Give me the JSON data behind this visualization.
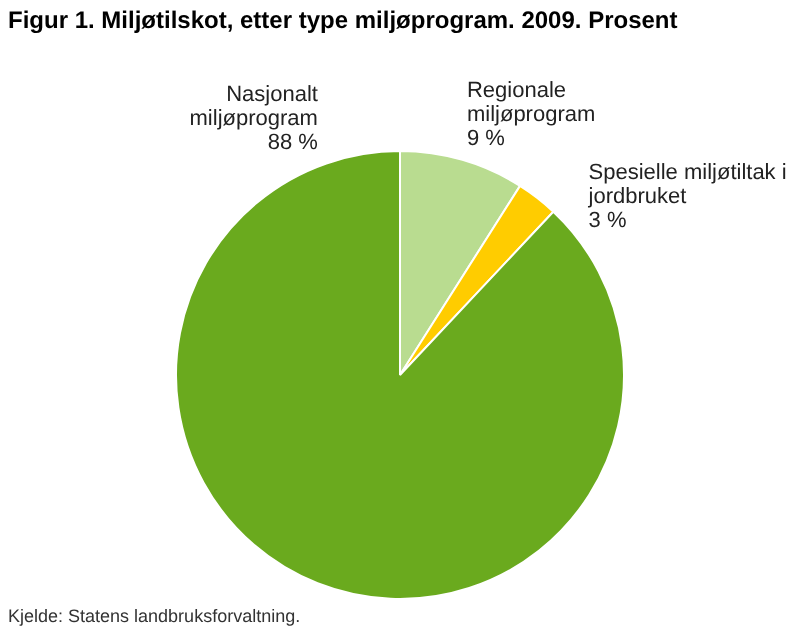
{
  "chart_data": {
    "type": "pie",
    "title": "Figur 1. Miljøtilskot, etter type miljøprogram. 2009. Prosent",
    "categories": [
      "Regionale miljøprogram",
      "Spesielle miljøtiltak i jordbruket",
      "Nasjonalt miljøprogram"
    ],
    "values": [
      9,
      3,
      88
    ],
    "colors": [
      "#b9dc90",
      "#ffcc00",
      "#6aaa1e"
    ],
    "value_labels": [
      "9 %",
      "3 %",
      "88 %"
    ],
    "annotations": [
      "Kjelde: Statens landbruksforvaltning."
    ],
    "legend": false
  }
}
